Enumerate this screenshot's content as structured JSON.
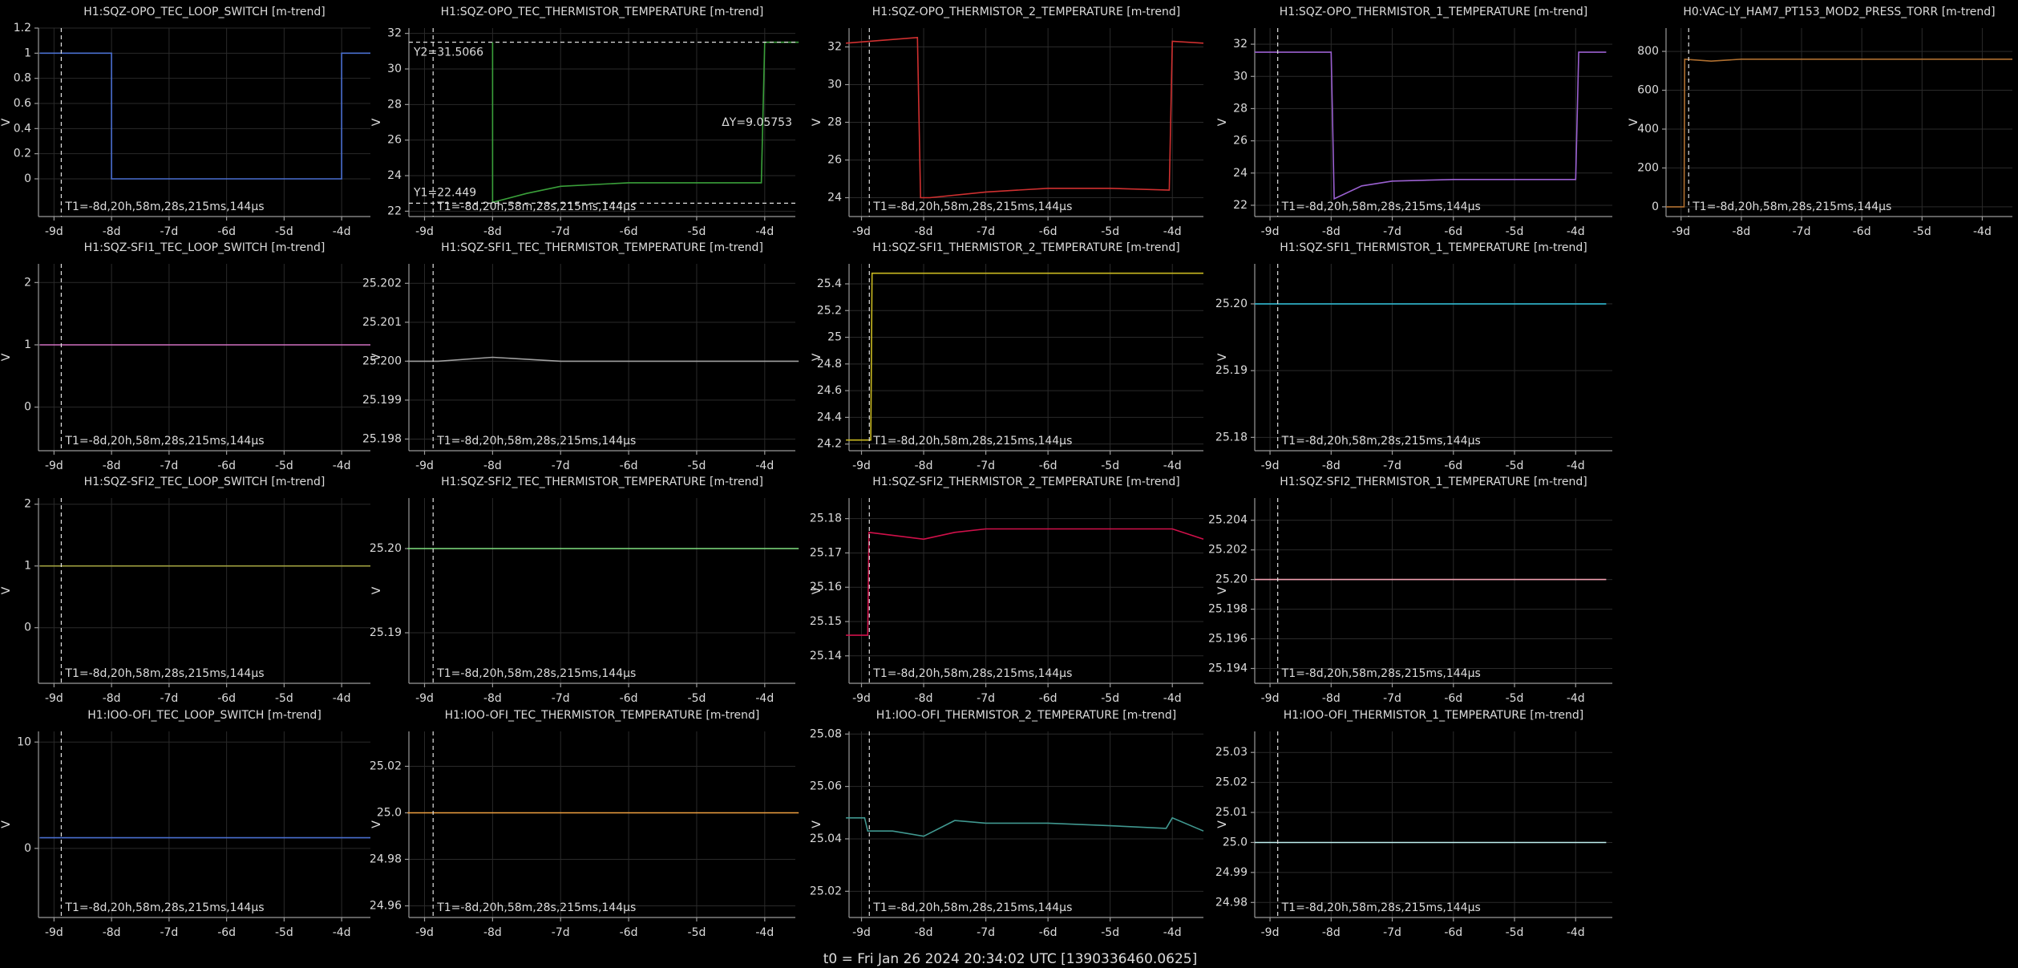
{
  "footer": "t0 = Fri Jan 26 2024 20:34:02 UTC [1390336460.0625]",
  "chart_data": [
    {
      "type": "line",
      "title": "H1:SQZ-OPO_TEC_LOOP_SWITCH [m-trend]",
      "ylabel": "V",
      "color": "#4a6fd0",
      "x": [
        -9.25,
        -8.0,
        -8.0,
        -4.0,
        -4.0,
        -3.5
      ],
      "values": [
        1,
        1,
        0,
        0,
        1,
        1
      ],
      "xlim": [
        -9.27,
        -3.5
      ],
      "xticks": [
        {
          "value": -9,
          "label": "-9d"
        },
        {
          "value": -8,
          "label": "-8d"
        },
        {
          "value": -7,
          "label": "-7d"
        },
        {
          "value": -6,
          "label": "-6d"
        },
        {
          "value": -5,
          "label": "-5d"
        },
        {
          "value": -4,
          "label": "-4d"
        }
      ],
      "ylim": [
        -0.3,
        1.2
      ],
      "yticks": [
        0,
        0.2,
        0.4,
        0.6,
        0.8,
        1,
        1.2
      ],
      "grid": true,
      "cursor": {
        "value": -8.874,
        "label": "T1=-8d,20h,58m,28s,215ms,144µs"
      }
    },
    {
      "type": "line",
      "title": "H1:SQZ-OPO_TEC_THERMISTOR_TEMPERATURE [m-trend]",
      "ylabel": "V",
      "color": "#3aa03a",
      "x": [
        -8.0,
        -8.0,
        -7.5,
        -7.0,
        -6.0,
        -5.0,
        -4.05,
        -4.0,
        -3.5
      ],
      "values": [
        31.5,
        22.5,
        23.0,
        23.4,
        23.6,
        23.6,
        23.6,
        31.5,
        31.5
      ],
      "xlim": [
        -9.23,
        -3.55
      ],
      "xticks": [
        {
          "value": -9,
          "label": "-9d"
        },
        {
          "value": -8,
          "label": "-8d"
        },
        {
          "value": -7,
          "label": "-7d"
        },
        {
          "value": -6,
          "label": "-6d"
        },
        {
          "value": -5,
          "label": "-5d"
        },
        {
          "value": -4,
          "label": "-4d"
        }
      ],
      "ylim": [
        21.7,
        32.3
      ],
      "yticks": [
        22,
        24,
        26,
        28,
        30,
        32
      ],
      "grid": true,
      "cursor": {
        "value": -8.874,
        "label": "T1=-8d,20h,58m,28s,215ms,144µs"
      },
      "y_cursors": [
        {
          "value": 31.5066,
          "label": "Y2=31.5066"
        },
        {
          "value": 22.449,
          "label": "Y1=22.449"
        }
      ],
      "delta_label": "ΔY=9.05753"
    },
    {
      "type": "line",
      "title": "H1:SQZ-OPO_THERMISTOR_2_TEMPERATURE [m-trend]",
      "ylabel": "V",
      "color": "#d03030",
      "x": [
        -9.25,
        -8.1,
        -8.05,
        -7.9,
        -7.0,
        -6.0,
        -5.0,
        -4.05,
        -4.0,
        -3.5
      ],
      "values": [
        32.2,
        32.5,
        24.0,
        24.0,
        24.3,
        24.5,
        24.5,
        24.4,
        32.3,
        32.2
      ],
      "xlim": [
        -9.2,
        -3.5
      ],
      "xticks": [
        {
          "value": -9,
          "label": "-9d"
        },
        {
          "value": -8,
          "label": "-8d"
        },
        {
          "value": -7,
          "label": "-7d"
        },
        {
          "value": -6,
          "label": "-6d"
        },
        {
          "value": -5,
          "label": "-5d"
        },
        {
          "value": -4,
          "label": "-4d"
        }
      ],
      "ylim": [
        23,
        33
      ],
      "yticks": [
        24,
        26,
        28,
        30,
        32
      ],
      "grid": true,
      "cursor": {
        "value": -8.874,
        "label": "T1=-8d,20h,58m,28s,215ms,144µs"
      }
    },
    {
      "type": "line",
      "title": "H1:SQZ-OPO_THERMISTOR_1_TEMPERATURE [m-trend]",
      "ylabel": "V",
      "color": "#9a60d0",
      "x": [
        -9.25,
        -8.0,
        -7.95,
        -7.5,
        -7.0,
        -6.0,
        -5.0,
        -4.0,
        -3.95,
        -3.5
      ],
      "values": [
        31.5,
        31.5,
        22.4,
        23.2,
        23.5,
        23.6,
        23.6,
        23.6,
        31.5,
        31.5
      ],
      "xlim": [
        -9.25,
        -3.4
      ],
      "xticks": [
        {
          "value": -9,
          "label": "-9d"
        },
        {
          "value": -8,
          "label": "-8d"
        },
        {
          "value": -7,
          "label": "-7d"
        },
        {
          "value": -6,
          "label": "-6d"
        },
        {
          "value": -5,
          "label": "-5d"
        },
        {
          "value": -4,
          "label": "-4d"
        }
      ],
      "ylim": [
        21.3,
        33
      ],
      "yticks": [
        22,
        24,
        26,
        28,
        30,
        32
      ],
      "grid": true,
      "cursor": {
        "value": -8.874,
        "label": "T1=-8d,20h,58m,28s,215ms,144µs"
      }
    },
    {
      "type": "line",
      "title": "H0:VAC-LY_HAM7_PT153_MOD2_PRESS_TORR [m-trend]",
      "ylabel": "V",
      "color": "#b07030",
      "x": [
        -9.25,
        -8.95,
        -8.94,
        -8.5,
        -8.0,
        -3.5
      ],
      "values": [
        0,
        0,
        760,
        750,
        760,
        760
      ],
      "xlim": [
        -9.25,
        -3.5
      ],
      "xticks": [
        {
          "value": -9,
          "label": "-9d"
        },
        {
          "value": -8,
          "label": "-8d"
        },
        {
          "value": -7,
          "label": "-7d"
        },
        {
          "value": -6,
          "label": "-6d"
        },
        {
          "value": -5,
          "label": "-5d"
        },
        {
          "value": -4,
          "label": "-4d"
        }
      ],
      "ylim": [
        -50,
        920
      ],
      "yticks": [
        0,
        200,
        400,
        600,
        800
      ],
      "grid": true,
      "cursor": {
        "value": -8.874,
        "label": "T1=-8d,20h,58m,28s,215ms,144µs"
      }
    },
    {
      "type": "line",
      "title": "H1:SQZ-SFI1_TEC_LOOP_SWITCH [m-trend]",
      "ylabel": "V",
      "color": "#d070c0",
      "x": [
        -9.25,
        -3.5
      ],
      "values": [
        1,
        1
      ],
      "xlim": [
        -9.27,
        -3.5
      ],
      "xticks": [
        {
          "value": -9,
          "label": "-9d"
        },
        {
          "value": -8,
          "label": "-8d"
        },
        {
          "value": -7,
          "label": "-7d"
        },
        {
          "value": -6,
          "label": "-6d"
        },
        {
          "value": -5,
          "label": "-5d"
        },
        {
          "value": -4,
          "label": "-4d"
        }
      ],
      "ylim": [
        -0.7,
        2.3
      ],
      "yticks": [
        0,
        1,
        2
      ],
      "grid": true,
      "cursor": {
        "value": -8.874,
        "label": "T1=-8d,20h,58m,28s,215ms,144µs"
      }
    },
    {
      "type": "line",
      "title": "H1:SQZ-SFI1_TEC_THERMISTOR_TEMPERATURE [m-trend]",
      "ylabel": "V",
      "color": "#a0a0a0",
      "x": [
        -9.25,
        -8.8,
        -8.0,
        -7.0,
        -6.0,
        -5.0,
        -4.3,
        -4.0,
        -3.5
      ],
      "values": [
        25.2,
        25.2,
        25.2001,
        25.2,
        25.2,
        25.2,
        25.2,
        25.2,
        25.2
      ],
      "xlim": [
        -9.23,
        -3.55
      ],
      "xticks": [
        {
          "value": -9,
          "label": "-9d"
        },
        {
          "value": -8,
          "label": "-8d"
        },
        {
          "value": -7,
          "label": "-7d"
        },
        {
          "value": -6,
          "label": "-6d"
        },
        {
          "value": -5,
          "label": "-5d"
        },
        {
          "value": -4,
          "label": "-4d"
        }
      ],
      "ylim": [
        25.1977,
        25.2025
      ],
      "yticks": [
        25.198,
        25.199,
        {
          "value": 25.2,
          "label": "25.200"
        },
        25.201,
        25.202
      ],
      "grid": true,
      "cursor": {
        "value": -8.874,
        "label": "T1=-8d,20h,58m,28s,215ms,144µs"
      }
    },
    {
      "type": "line",
      "title": "H1:SQZ-SFI1_THERMISTOR_2_TEMPERATURE [m-trend]",
      "ylabel": "V",
      "color": "#c8b820",
      "x": [
        -9.25,
        -8.85,
        -8.83,
        -3.5
      ],
      "values": [
        24.23,
        24.23,
        25.48,
        25.48
      ],
      "xlim": [
        -9.2,
        -3.5
      ],
      "xticks": [
        {
          "value": -9,
          "label": "-9d"
        },
        {
          "value": -8,
          "label": "-8d"
        },
        {
          "value": -7,
          "label": "-7d"
        },
        {
          "value": -6,
          "label": "-6d"
        },
        {
          "value": -5,
          "label": "-5d"
        },
        {
          "value": -4,
          "label": "-4d"
        }
      ],
      "ylim": [
        24.15,
        25.55
      ],
      "yticks": [
        24.2,
        24.4,
        24.6,
        24.8,
        25,
        25.2,
        25.4
      ],
      "grid": true,
      "cursor": {
        "value": -8.874,
        "label": "T1=-8d,20h,58m,28s,215ms,144µs"
      }
    },
    {
      "type": "line",
      "title": "H1:SQZ-SFI1_THERMISTOR_1_TEMPERATURE [m-trend]",
      "ylabel": "V",
      "color": "#30b8d0",
      "x": [
        -9.25,
        -3.5
      ],
      "values": [
        25.2,
        25.2
      ],
      "xlim": [
        -9.25,
        -3.4
      ],
      "xticks": [
        {
          "value": -9,
          "label": "-9d"
        },
        {
          "value": -8,
          "label": "-8d"
        },
        {
          "value": -7,
          "label": "-7d"
        },
        {
          "value": -6,
          "label": "-6d"
        },
        {
          "value": -5,
          "label": "-5d"
        },
        {
          "value": -4,
          "label": "-4d"
        }
      ],
      "ylim": [
        25.178,
        25.206
      ],
      "yticks": [
        25.18,
        25.19,
        {
          "value": 25.2,
          "label": "25.20"
        }
      ],
      "grid": true,
      "cursor": {
        "value": -8.874,
        "label": "T1=-8d,20h,58m,28s,215ms,144µs"
      }
    },
    {
      "type": "line",
      "title": "H1:SQZ-SFI2_TEC_LOOP_SWITCH [m-trend]",
      "ylabel": "V",
      "color": "#a0a040",
      "x": [
        -9.25,
        -3.5
      ],
      "values": [
        1,
        1
      ],
      "xlim": [
        -9.27,
        -3.5
      ],
      "xticks": [
        {
          "value": -9,
          "label": "-9d"
        },
        {
          "value": -8,
          "label": "-8d"
        },
        {
          "value": -7,
          "label": "-7d"
        },
        {
          "value": -6,
          "label": "-6d"
        },
        {
          "value": -5,
          "label": "-5d"
        },
        {
          "value": -4,
          "label": "-4d"
        }
      ],
      "ylim": [
        -0.9,
        2.1
      ],
      "yticks": [
        0,
        1,
        2
      ],
      "grid": true,
      "cursor": {
        "value": -8.874,
        "label": "T1=-8d,20h,58m,28s,215ms,144µs"
      }
    },
    {
      "type": "line",
      "title": "H1:SQZ-SFI2_TEC_THERMISTOR_TEMPERATURE [m-trend]",
      "ylabel": "V",
      "color": "#80e080",
      "x": [
        -9.25,
        -3.5
      ],
      "values": [
        25.2,
        25.2
      ],
      "xlim": [
        -9.23,
        -3.55
      ],
      "xticks": [
        {
          "value": -9,
          "label": "-9d"
        },
        {
          "value": -8,
          "label": "-8d"
        },
        {
          "value": -7,
          "label": "-7d"
        },
        {
          "value": -6,
          "label": "-6d"
        },
        {
          "value": -5,
          "label": "-5d"
        },
        {
          "value": -4,
          "label": "-4d"
        }
      ],
      "ylim": [
        25.184,
        25.206
      ],
      "yticks": [
        25.19,
        {
          "value": 25.2,
          "label": "25.20"
        }
      ],
      "grid": true,
      "cursor": {
        "value": -8.874,
        "label": "T1=-8d,20h,58m,28s,215ms,144µs"
      }
    },
    {
      "type": "line",
      "title": "H1:SQZ-SFI2_THERMISTOR_2_TEMPERATURE [m-trend]",
      "ylabel": "V",
      "color": "#d0104a",
      "x": [
        -9.25,
        -8.9,
        -8.88,
        -8.0,
        -7.5,
        -7.0,
        -6.0,
        -5.0,
        -4.0,
        -3.5
      ],
      "values": [
        25.146,
        25.146,
        25.176,
        25.174,
        25.176,
        25.177,
        25.177,
        25.177,
        25.177,
        25.174
      ],
      "xlim": [
        -9.2,
        -3.5
      ],
      "xticks": [
        {
          "value": -9,
          "label": "-9d"
        },
        {
          "value": -8,
          "label": "-8d"
        },
        {
          "value": -7,
          "label": "-7d"
        },
        {
          "value": -6,
          "label": "-6d"
        },
        {
          "value": -5,
          "label": "-5d"
        },
        {
          "value": -4,
          "label": "-4d"
        }
      ],
      "ylim": [
        25.132,
        25.186
      ],
      "yticks": [
        25.14,
        25.15,
        25.16,
        25.17,
        25.18
      ],
      "grid": true,
      "cursor": {
        "value": -8.874,
        "label": "T1=-8d,20h,58m,28s,215ms,144µs"
      }
    },
    {
      "type": "line",
      "title": "H1:SQZ-SFI2_THERMISTOR_1_TEMPERATURE [m-trend]",
      "ylabel": "V",
      "color": "#f0a0b0",
      "x": [
        -9.25,
        -3.5
      ],
      "values": [
        25.2,
        25.2
      ],
      "xlim": [
        -9.25,
        -3.4
      ],
      "xticks": [
        {
          "value": -9,
          "label": "-9d"
        },
        {
          "value": -8,
          "label": "-8d"
        },
        {
          "value": -7,
          "label": "-7d"
        },
        {
          "value": -6,
          "label": "-6d"
        },
        {
          "value": -5,
          "label": "-5d"
        },
        {
          "value": -4,
          "label": "-4d"
        }
      ],
      "ylim": [
        25.193,
        25.2055
      ],
      "yticks": [
        25.194,
        25.196,
        25.198,
        {
          "value": 25.2,
          "label": "25.20"
        },
        25.202,
        25.204
      ],
      "grid": true,
      "cursor": {
        "value": -8.874,
        "label": "T1=-8d,20h,58m,28s,215ms,144µs"
      }
    },
    {
      "type": "line",
      "title": "H1:IOO-OFI_TEC_LOOP_SWITCH [m-trend]",
      "ylabel": "V",
      "color": "#4a6fd0",
      "x": [
        -9.25,
        -3.5
      ],
      "values": [
        1,
        1
      ],
      "xlim": [
        -9.27,
        -3.5
      ],
      "xticks": [
        {
          "value": -9,
          "label": "-9d"
        },
        {
          "value": -8,
          "label": "-8d"
        },
        {
          "value": -7,
          "label": "-7d"
        },
        {
          "value": -6,
          "label": "-6d"
        },
        {
          "value": -5,
          "label": "-5d"
        },
        {
          "value": -4,
          "label": "-4d"
        }
      ],
      "ylim": [
        -6.5,
        11
      ],
      "yticks": [
        0,
        10
      ],
      "grid": true,
      "cursor": {
        "value": -8.874,
        "label": "T1=-8d,20h,58m,28s,215ms,144µs"
      }
    },
    {
      "type": "line",
      "title": "H1:IOO-OFI_TEC_THERMISTOR_TEMPERATURE [m-trend]",
      "ylabel": "V",
      "color": "#f0a040",
      "x": [
        -9.25,
        -3.5
      ],
      "values": [
        25.0,
        25.0
      ],
      "xlim": [
        -9.23,
        -3.55
      ],
      "xticks": [
        {
          "value": -9,
          "label": "-9d"
        },
        {
          "value": -8,
          "label": "-8d"
        },
        {
          "value": -7,
          "label": "-7d"
        },
        {
          "value": -6,
          "label": "-6d"
        },
        {
          "value": -5,
          "label": "-5d"
        },
        {
          "value": -4,
          "label": "-4d"
        }
      ],
      "ylim": [
        24.955,
        25.035
      ],
      "yticks": [
        24.96,
        24.98,
        {
          "value": 25,
          "label": "25.0"
        },
        25.02
      ],
      "grid": true,
      "cursor": {
        "value": -8.874,
        "label": "T1=-8d,20h,58m,28s,215ms,144µs"
      }
    },
    {
      "type": "line",
      "title": "H1:IOO-OFI_THERMISTOR_2_TEMPERATURE [m-trend]",
      "ylabel": "V",
      "color": "#409890",
      "x": [
        -9.25,
        -8.95,
        -8.9,
        -8.5,
        -8.0,
        -7.5,
        -7.0,
        -6.0,
        -5.0,
        -4.1,
        -4.0,
        -3.5
      ],
      "values": [
        25.048,
        25.048,
        25.043,
        25.043,
        25.041,
        25.047,
        25.046,
        25.046,
        25.045,
        25.044,
        25.048,
        25.043
      ],
      "xlim": [
        -9.2,
        -3.5
      ],
      "xticks": [
        {
          "value": -9,
          "label": "-9d"
        },
        {
          "value": -8,
          "label": "-8d"
        },
        {
          "value": -7,
          "label": "-7d"
        },
        {
          "value": -6,
          "label": "-6d"
        },
        {
          "value": -5,
          "label": "-5d"
        },
        {
          "value": -4,
          "label": "-4d"
        }
      ],
      "ylim": [
        25.01,
        25.081
      ],
      "yticks": [
        25.02,
        25.04,
        25.06,
        25.08
      ],
      "grid": true,
      "cursor": {
        "value": -8.874,
        "label": "T1=-8d,20h,58m,28s,215ms,144µs"
      }
    },
    {
      "type": "line",
      "title": "H1:IOO-OFI_THERMISTOR_1_TEMPERATURE [m-trend]",
      "ylabel": "V",
      "color": "#c0f0f0",
      "x": [
        -9.25,
        -3.5
      ],
      "values": [
        25.0,
        25.0
      ],
      "xlim": [
        -9.25,
        -3.4
      ],
      "xticks": [
        {
          "value": -9,
          "label": "-9d"
        },
        {
          "value": -8,
          "label": "-8d"
        },
        {
          "value": -7,
          "label": "-7d"
        },
        {
          "value": -6,
          "label": "-6d"
        },
        {
          "value": -5,
          "label": "-5d"
        },
        {
          "value": -4,
          "label": "-4d"
        }
      ],
      "ylim": [
        24.975,
        25.037
      ],
      "yticks": [
        24.98,
        24.99,
        {
          "value": 25,
          "label": "25.0"
        },
        25.01,
        25.02,
        25.03
      ],
      "grid": true,
      "cursor": {
        "value": -8.874,
        "label": "T1=-8d,20h,58m,28s,215ms,144µs"
      }
    }
  ]
}
